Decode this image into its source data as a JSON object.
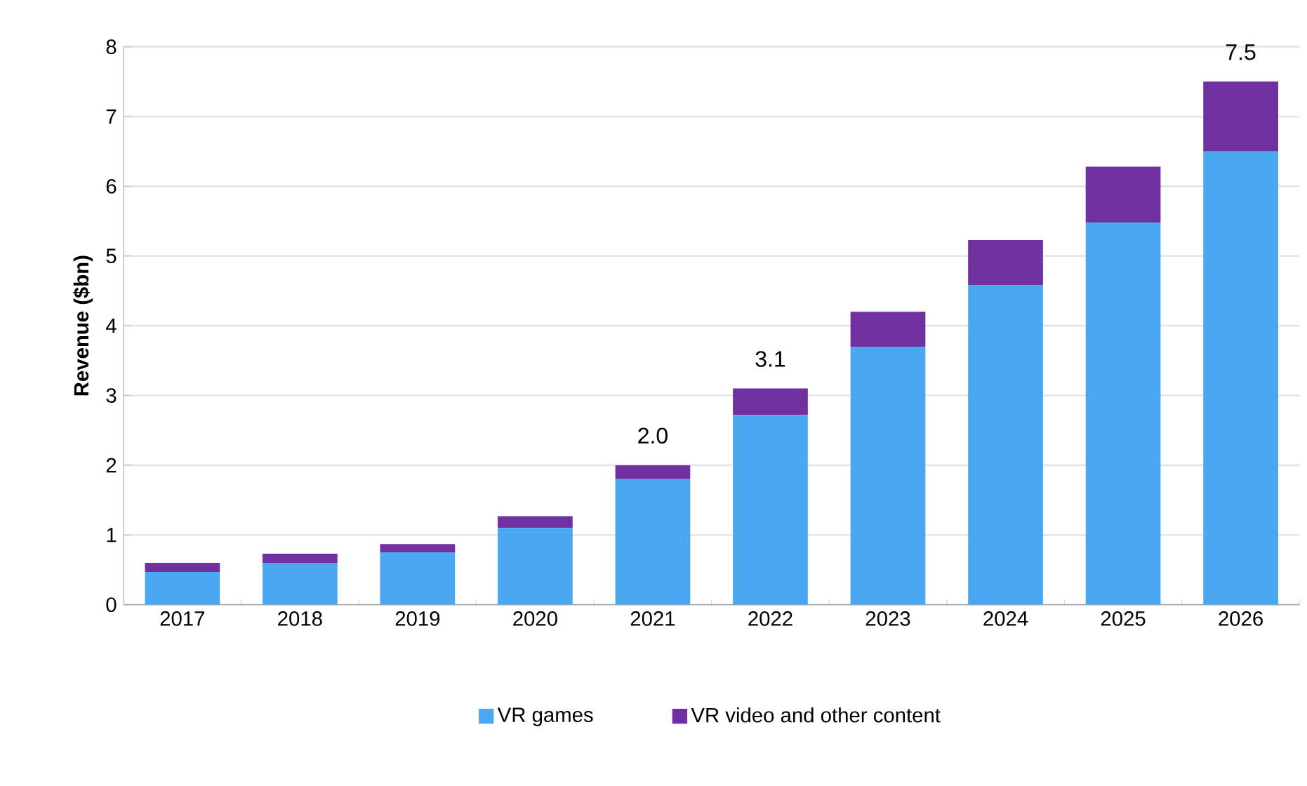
{
  "chart_data": {
    "type": "bar",
    "stacked": true,
    "ylabel": "Revenue ($bn)",
    "categories": [
      "2017",
      "2018",
      "2019",
      "2020",
      "2021",
      "2022",
      "2023",
      "2024",
      "2025",
      "2026"
    ],
    "series": [
      {
        "name": "VR games",
        "color": "#4aa8f0",
        "values": [
          0.47,
          0.6,
          0.75,
          1.1,
          1.8,
          2.72,
          3.7,
          4.58,
          5.48,
          6.5
        ]
      },
      {
        "name": "VR video and other content",
        "color": "#7030a0",
        "values": [
          0.13,
          0.13,
          0.12,
          0.17,
          0.2,
          0.38,
          0.5,
          0.65,
          0.8,
          1.0
        ]
      }
    ],
    "totals": [
      null,
      null,
      null,
      null,
      "2.0",
      "3.1",
      null,
      null,
      null,
      "7.5"
    ],
    "ylim": [
      0,
      8
    ],
    "yticks": [
      0,
      1,
      2,
      3,
      4,
      5,
      6,
      7,
      8
    ],
    "grid": "y",
    "legend": "bottom"
  }
}
